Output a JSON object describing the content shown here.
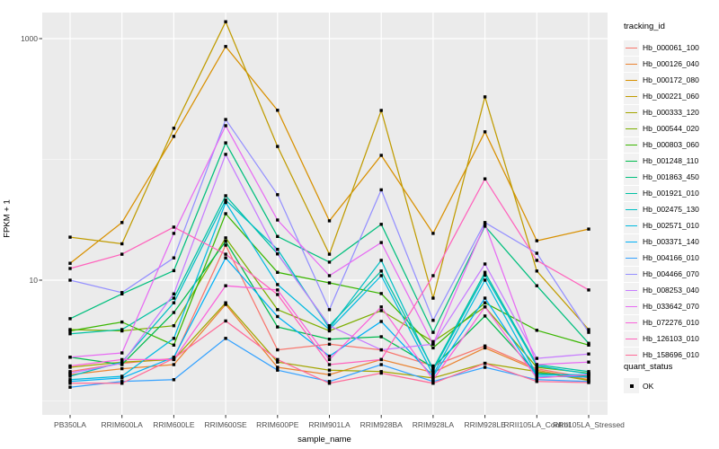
{
  "chart_data": {
    "type": "line",
    "xlabel": "sample_name",
    "ylabel": "FPKM + 1",
    "y_scale": "log10",
    "y_ticks": [
      {
        "label": "1000",
        "value": 1000
      },
      {
        "label": "10",
        "value": 10
      }
    ],
    "y_minor_gridlines": [
      100,
      1
    ],
    "x_categories": [
      "PB350LA",
      "RRIM600LA",
      "RRIM600LE",
      "RRIM600SE",
      "RRIM600PE",
      "RRIM901LA",
      "RRIM928BA",
      "RRIM928LA",
      "RRIM928LE",
      "RRII105LA_Control",
      "RRII105LA_Stressed"
    ],
    "legend_title": "tracking_id",
    "point_legend_title": "quant_status",
    "point_legend_items": [
      "OK"
    ],
    "panel_bg": "#EBEBEB",
    "grid_color": "#FFFFFF",
    "point_color": "#000000",
    "series": [
      {
        "name": "Hb_000061_100",
        "color": "#F8766D",
        "values": [
          1.75,
          2.05,
          2.25,
          19.5,
          2.65,
          2.95,
          2.65,
          1.95,
          2.85,
          1.85,
          1.55
        ]
      },
      {
        "name": "Hb_000126_040",
        "color": "#EA8331",
        "values": [
          1.65,
          1.85,
          2.0,
          6.3,
          1.9,
          1.65,
          2.2,
          1.72,
          2.75,
          1.8,
          1.5
        ]
      },
      {
        "name": "Hb_000172_080",
        "color": "#D89000",
        "values": [
          13.8,
          30,
          155,
          860,
          255,
          31,
          108,
          24.4,
          169,
          21.2,
          26.5
        ]
      },
      {
        "name": "Hb_000221_060",
        "color": "#C09B00",
        "values": [
          22.7,
          20,
          181,
          1380,
          128,
          16.4,
          254,
          7.1,
          329,
          11.9,
          3.9
        ]
      },
      {
        "name": "Hb_000333_120",
        "color": "#A3A500",
        "values": [
          1.9,
          2.1,
          2.2,
          6.5,
          2.1,
          1.8,
          1.75,
          1.55,
          2.05,
          1.75,
          1.48
        ]
      },
      {
        "name": "Hb_000544_020",
        "color": "#7CAE00",
        "values": [
          3.9,
          3.8,
          4.2,
          22.4,
          5.7,
          3.8,
          5.6,
          3.1,
          6.0,
          1.9,
          1.7
        ]
      },
      {
        "name": "Hb_000803_060",
        "color": "#39B600",
        "values": [
          3.8,
          4.5,
          2.9,
          35.5,
          11.6,
          9.5,
          7.75,
          2.75,
          6.5,
          3.85,
          2.9
        ]
      },
      {
        "name": "Hb_001248_110",
        "color": "#00BB4E",
        "values": [
          2.3,
          2.0,
          5.4,
          21,
          4.1,
          3.25,
          3.4,
          1.9,
          5.05,
          1.7,
          1.6
        ]
      },
      {
        "name": "Hb_001863_450",
        "color": "#00BF7D",
        "values": [
          4.8,
          7.7,
          12,
          137,
          23,
          14.1,
          29,
          3.7,
          28,
          9.0,
          3.0
        ]
      },
      {
        "name": "Hb_001921_010",
        "color": "#00C1A3",
        "values": [
          3.6,
          3.9,
          7.1,
          50,
          16.5,
          4.2,
          11.9,
          1.85,
          11.6,
          2.0,
          1.75
        ]
      },
      {
        "name": "Hb_002475_130",
        "color": "#00BFC4",
        "values": [
          1.6,
          2.1,
          6.5,
          46,
          18,
          4.0,
          14.6,
          1.8,
          11.0,
          1.95,
          1.68
        ]
      },
      {
        "name": "Hb_002571_010",
        "color": "#00BAE0",
        "values": [
          1.5,
          1.6,
          3.3,
          44,
          9.2,
          3.9,
          10.9,
          1.65,
          10,
          1.65,
          1.65
        ]
      },
      {
        "name": "Hb_003371_140",
        "color": "#00B0F6",
        "values": [
          1.45,
          1.55,
          2.3,
          15.3,
          5.0,
          2.35,
          4.55,
          1.6,
          7.1,
          1.6,
          1.58
        ]
      },
      {
        "name": "Hb_004166_010",
        "color": "#35A2FF",
        "values": [
          1.3,
          1.45,
          1.5,
          3.3,
          1.8,
          1.45,
          2.0,
          1.45,
          1.9,
          1.5,
          1.45
        ]
      },
      {
        "name": "Hb_004466_070",
        "color": "#9590FF",
        "values": [
          10,
          7.9,
          15.3,
          214,
          51,
          5.7,
          56,
          4.65,
          30,
          16.7,
          3.7
        ]
      },
      {
        "name": "Hb_008253_040",
        "color": "#C77CFF",
        "values": [
          1.7,
          2.05,
          7.7,
          110,
          16.5,
          4.2,
          2.65,
          2.95,
          13.6,
          2.25,
          2.45
        ]
      },
      {
        "name": "Hb_033642_070",
        "color": "#E76BF3",
        "values": [
          2.3,
          2.5,
          24.4,
          190,
          31.5,
          10.9,
          20.5,
          2.95,
          29,
          2.0,
          2.1
        ]
      },
      {
        "name": "Hb_072276_010",
        "color": "#FA62DB",
        "values": [
          1.95,
          2.2,
          2.2,
          9.0,
          8.3,
          2.2,
          6.0,
          1.5,
          6.0,
          1.55,
          1.65
        ]
      },
      {
        "name": "Hb_126103_010",
        "color": "#FF62BC",
        "values": [
          12.5,
          16.4,
          27.5,
          16.4,
          7.6,
          2.0,
          2.2,
          10.9,
          69,
          14.6,
          8.3
        ]
      },
      {
        "name": "Hb_158696_010",
        "color": "#FF6A98",
        "values": [
          1.4,
          1.4,
          2.25,
          4.6,
          2.2,
          1.4,
          1.7,
          1.4,
          2.05,
          1.45,
          1.42
        ]
      }
    ]
  }
}
